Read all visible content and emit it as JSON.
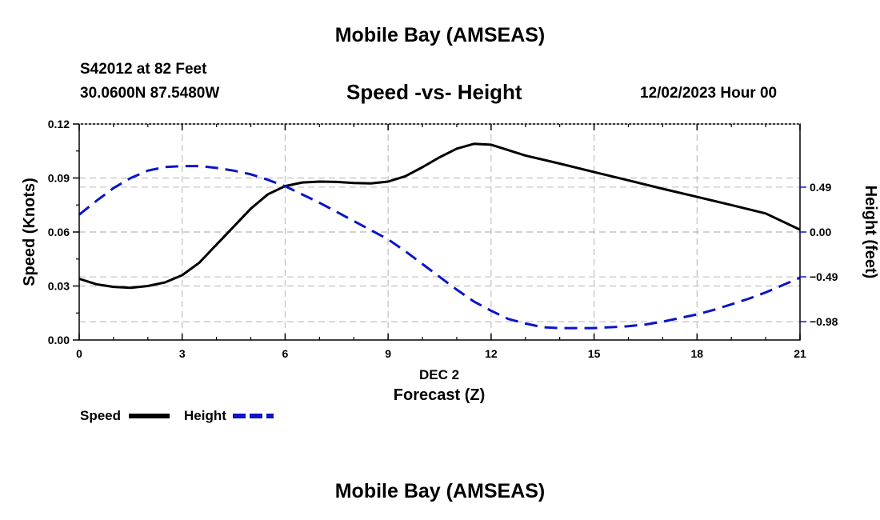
{
  "header": {
    "title": "Mobile Bay (AMSEAS)",
    "station": "S42012 at 82 Feet",
    "coords": "30.0600N  87.5480W",
    "datetime": "12/02/2023 Hour 00"
  },
  "footer": {
    "title": "Mobile Bay (AMSEAS)"
  },
  "legend": {
    "speed_label": "Speed",
    "height_label": "Height"
  },
  "colors": {
    "speed": "#000000",
    "height": "#0a14c8",
    "grid": "#c0c0c0"
  },
  "chart_data": {
    "type": "line",
    "title": "Speed -vs- Height",
    "xlabel": "Forecast (Z)",
    "xlabel_date": "DEC 2",
    "ylabel": "Speed (Knots)",
    "y2label": "Height (feet)",
    "xlim": [
      0,
      21
    ],
    "ylim": [
      0,
      0.12
    ],
    "y2lim": [
      -1.18,
      1.18
    ],
    "x_ticks": [
      0,
      3,
      6,
      9,
      12,
      15,
      18,
      21
    ],
    "x_tick_labels": [
      "0",
      "3",
      "6",
      "9",
      "12",
      "15",
      "18",
      "21"
    ],
    "y_ticks": [
      0.0,
      0.03,
      0.06,
      0.09,
      0.12
    ],
    "y_tick_labels": [
      "0.00",
      "0.03",
      "0.06",
      "0.09",
      "0.12"
    ],
    "y2_ticks": [
      0.49,
      0.0,
      -0.49,
      -0.98
    ],
    "y2_tick_labels": [
      "0.49",
      "0.00",
      "−0.49",
      "−0.98"
    ],
    "grid": true,
    "series": [
      {
        "name": "Speed",
        "axis": "left",
        "style": "solid",
        "x": [
          0,
          0.5,
          1,
          1.5,
          2,
          2.5,
          3,
          3.5,
          4,
          4.5,
          5,
          5.5,
          6,
          6.5,
          7,
          7.5,
          8,
          8.5,
          9,
          9.5,
          10,
          10.5,
          11,
          11.5,
          12,
          13,
          14,
          15,
          16,
          17,
          18,
          19,
          20,
          21
        ],
        "values": [
          0.034,
          0.031,
          0.0295,
          0.029,
          0.03,
          0.032,
          0.036,
          0.043,
          0.053,
          0.063,
          0.073,
          0.081,
          0.0855,
          0.0875,
          0.088,
          0.0878,
          0.0872,
          0.087,
          0.088,
          0.091,
          0.096,
          0.1015,
          0.1063,
          0.109,
          0.1085,
          0.1025,
          0.098,
          0.0933,
          0.0887,
          0.084,
          0.0795,
          0.075,
          0.0703,
          0.0613
        ]
      },
      {
        "name": "Height",
        "axis": "right",
        "style": "dashed",
        "x": [
          0,
          0.5,
          1,
          1.5,
          2,
          2.5,
          3,
          3.5,
          4,
          4.5,
          5,
          5.5,
          6,
          6.5,
          7,
          7.5,
          8,
          8.5,
          9,
          9.5,
          10,
          10.5,
          11,
          11.5,
          12,
          12.5,
          13,
          13.5,
          14,
          14.5,
          15,
          15.5,
          16,
          16.5,
          17,
          17.5,
          18,
          18.5,
          19,
          19.5,
          20,
          20.5,
          21
        ],
        "values": [
          0.19,
          0.34,
          0.48,
          0.59,
          0.67,
          0.71,
          0.72,
          0.72,
          0.7,
          0.67,
          0.63,
          0.57,
          0.5,
          0.41,
          0.32,
          0.22,
          0.12,
          0.02,
          -0.08,
          -0.21,
          -0.35,
          -0.49,
          -0.63,
          -0.76,
          -0.86,
          -0.95,
          -1.0,
          -1.04,
          -1.05,
          -1.05,
          -1.05,
          -1.04,
          -1.03,
          -1.01,
          -0.98,
          -0.94,
          -0.9,
          -0.85,
          -0.79,
          -0.73,
          -0.66,
          -0.58,
          -0.5
        ]
      }
    ]
  }
}
